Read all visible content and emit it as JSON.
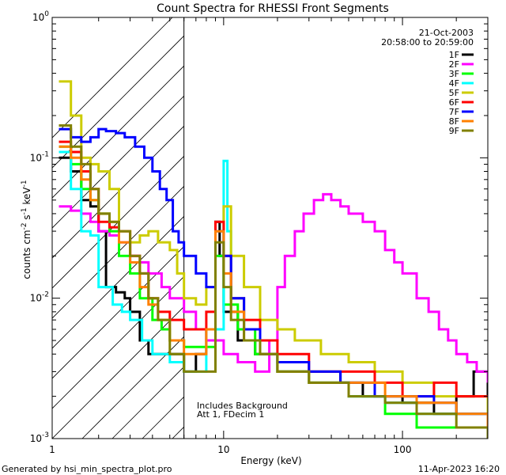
{
  "chart_data": {
    "type": "line",
    "title": "Count Spectra for RHESSI Front Segments",
    "xlabel": "Energy (keV)",
    "ylabel": "counts cm^-2 s^-1 keV^-1",
    "ylabel_parts": {
      "base": "counts cm",
      "exp1": "-2",
      "mid1": " s",
      "exp2": "-1",
      "mid2": " keV",
      "exp3": "-1"
    },
    "x_scale": "log",
    "y_scale": "log",
    "xlim": [
      1.1,
      300
    ],
    "ylim": [
      0.001,
      1
    ],
    "x_ticks": [
      {
        "value": 1,
        "label": "1"
      },
      {
        "value": 10,
        "label": "10"
      },
      {
        "value": 100,
        "label": "100"
      }
    ],
    "y_ticks": [
      {
        "value": 0.001,
        "base": "10",
        "exp": "-3"
      },
      {
        "value": 0.01,
        "base": "10",
        "exp": "-2"
      },
      {
        "value": 0.1,
        "base": "10",
        "exp": "-1"
      },
      {
        "value": 1,
        "base": "10",
        "exp": "0"
      }
    ],
    "hatched_region": [
      1.1,
      6
    ],
    "date": "21-Oct-2003",
    "time_range": "20:58:00 to 20:59:00",
    "annotation": [
      "Includes Background",
      "Att 1, FDecim 1"
    ],
    "legend_position": "top-right",
    "series": [
      {
        "name": "1F",
        "color": "#000000",
        "points": [
          [
            1.2,
            0.1
          ],
          [
            1.4,
            0.08
          ],
          [
            1.6,
            0.05
          ],
          [
            1.8,
            0.045
          ],
          [
            2.0,
            0.03
          ],
          [
            2.2,
            0.012
          ],
          [
            2.5,
            0.011
          ],
          [
            2.8,
            0.01
          ],
          [
            3.0,
            0.008
          ],
          [
            3.4,
            0.005
          ],
          [
            3.8,
            0.004
          ],
          [
            4.3,
            0.004
          ],
          [
            5,
            0.004
          ],
          [
            6,
            0.003
          ],
          [
            7,
            0.004
          ],
          [
            8,
            0.006
          ],
          [
            9,
            0.035
          ],
          [
            9.5,
            0.02
          ],
          [
            10,
            0.008
          ],
          [
            12,
            0.005
          ],
          [
            15,
            0.004
          ],
          [
            20,
            0.003
          ],
          [
            30,
            0.003
          ],
          [
            45,
            0.0025
          ],
          [
            60,
            0.002
          ],
          [
            80,
            0.002
          ],
          [
            100,
            0.0018
          ],
          [
            150,
            0.0015
          ],
          [
            200,
            0.002
          ],
          [
            250,
            0.003
          ],
          [
            300,
            0.002
          ]
        ]
      },
      {
        "name": "2F",
        "color": "#ff00ff",
        "points": [
          [
            1.2,
            0.045
          ],
          [
            1.4,
            0.042
          ],
          [
            1.6,
            0.04
          ],
          [
            1.8,
            0.035
          ],
          [
            2.0,
            0.03
          ],
          [
            2.3,
            0.028
          ],
          [
            2.6,
            0.025
          ],
          [
            3.0,
            0.02
          ],
          [
            3.4,
            0.018
          ],
          [
            3.8,
            0.015
          ],
          [
            4.5,
            0.012
          ],
          [
            5,
            0.01
          ],
          [
            6,
            0.008
          ],
          [
            7,
            0.006
          ],
          [
            8,
            0.005
          ],
          [
            10,
            0.004
          ],
          [
            12,
            0.0035
          ],
          [
            15,
            0.003
          ],
          [
            18,
            0.005
          ],
          [
            20,
            0.012
          ],
          [
            22,
            0.02
          ],
          [
            25,
            0.03
          ],
          [
            28,
            0.04
          ],
          [
            32,
            0.05
          ],
          [
            36,
            0.055
          ],
          [
            40,
            0.05
          ],
          [
            45,
            0.045
          ],
          [
            50,
            0.04
          ],
          [
            60,
            0.035
          ],
          [
            70,
            0.03
          ],
          [
            80,
            0.022
          ],
          [
            90,
            0.018
          ],
          [
            100,
            0.015
          ],
          [
            120,
            0.01
          ],
          [
            140,
            0.008
          ],
          [
            160,
            0.006
          ],
          [
            180,
            0.005
          ],
          [
            200,
            0.004
          ],
          [
            230,
            0.0035
          ],
          [
            260,
            0.003
          ],
          [
            300,
            0.0025
          ]
        ]
      },
      {
        "name": "3F",
        "color": "#00ff00",
        "points": [
          [
            1.2,
            0.12
          ],
          [
            1.4,
            0.09
          ],
          [
            1.6,
            0.06
          ],
          [
            1.8,
            0.05
          ],
          [
            2.0,
            0.04
          ],
          [
            2.3,
            0.03
          ],
          [
            2.6,
            0.02
          ],
          [
            3.0,
            0.015
          ],
          [
            3.4,
            0.01
          ],
          [
            4.0,
            0.007
          ],
          [
            4.5,
            0.006
          ],
          [
            5,
            0.005
          ],
          [
            6,
            0.0045
          ],
          [
            8,
            0.0045
          ],
          [
            9,
            0.02
          ],
          [
            10,
            0.009
          ],
          [
            12,
            0.006
          ],
          [
            15,
            0.004
          ],
          [
            20,
            0.003
          ],
          [
            30,
            0.0025
          ],
          [
            50,
            0.002
          ],
          [
            80,
            0.0015
          ],
          [
            120,
            0.0012
          ],
          [
            200,
            0.0012
          ],
          [
            300,
            0.001
          ]
        ]
      },
      {
        "name": "4F",
        "color": "#00ffff",
        "points": [
          [
            1.2,
            0.11
          ],
          [
            1.4,
            0.06
          ],
          [
            1.6,
            0.03
          ],
          [
            1.8,
            0.028
          ],
          [
            2.0,
            0.012
          ],
          [
            2.4,
            0.009
          ],
          [
            2.7,
            0.008
          ],
          [
            3.0,
            0.007
          ],
          [
            3.5,
            0.005
          ],
          [
            4.0,
            0.004
          ],
          [
            5,
            0.0035
          ],
          [
            6,
            0.003
          ],
          [
            8,
            0.006
          ],
          [
            10,
            0.095
          ],
          [
            10.5,
            0.03
          ],
          [
            11,
            0.01
          ],
          [
            13,
            0.006
          ],
          [
            16,
            0.004
          ],
          [
            20,
            0.003
          ],
          [
            30,
            0.0025
          ],
          [
            50,
            0.002
          ],
          [
            80,
            0.0018
          ],
          [
            120,
            0.0015
          ],
          [
            200,
            0.0015
          ],
          [
            300,
            0.0012
          ]
        ]
      },
      {
        "name": "5F",
        "color": "#cccc00",
        "points": [
          [
            1.2,
            0.35
          ],
          [
            1.4,
            0.2
          ],
          [
            1.6,
            0.1
          ],
          [
            1.8,
            0.09
          ],
          [
            2.0,
            0.08
          ],
          [
            2.3,
            0.06
          ],
          [
            2.6,
            0.03
          ],
          [
            3.0,
            0.025
          ],
          [
            3.4,
            0.028
          ],
          [
            3.8,
            0.03
          ],
          [
            4.3,
            0.025
          ],
          [
            5,
            0.022
          ],
          [
            5.5,
            0.015
          ],
          [
            6,
            0.01
          ],
          [
            7,
            0.009
          ],
          [
            8,
            0.012
          ],
          [
            9,
            0.03
          ],
          [
            10,
            0.045
          ],
          [
            11,
            0.02
          ],
          [
            13,
            0.012
          ],
          [
            16,
            0.007
          ],
          [
            20,
            0.006
          ],
          [
            25,
            0.005
          ],
          [
            35,
            0.004
          ],
          [
            50,
            0.0035
          ],
          [
            70,
            0.003
          ],
          [
            100,
            0.0025
          ],
          [
            150,
            0.002
          ],
          [
            200,
            0.002
          ],
          [
            300,
            0.0015
          ]
        ]
      },
      {
        "name": "6F",
        "color": "#ff0000",
        "points": [
          [
            1.2,
            0.13
          ],
          [
            1.4,
            0.11
          ],
          [
            1.6,
            0.08
          ],
          [
            1.8,
            0.06
          ],
          [
            2.0,
            0.035
          ],
          [
            2.3,
            0.032
          ],
          [
            2.6,
            0.03
          ],
          [
            3.0,
            0.02
          ],
          [
            3.4,
            0.015
          ],
          [
            3.8,
            0.01
          ],
          [
            4.3,
            0.008
          ],
          [
            5,
            0.007
          ],
          [
            6,
            0.006
          ],
          [
            8,
            0.008
          ],
          [
            9,
            0.035
          ],
          [
            10,
            0.02
          ],
          [
            11,
            0.01
          ],
          [
            13,
            0.007
          ],
          [
            16,
            0.005
          ],
          [
            20,
            0.004
          ],
          [
            30,
            0.003
          ],
          [
            45,
            0.003
          ],
          [
            70,
            0.0025
          ],
          [
            100,
            0.002
          ],
          [
            150,
            0.0025
          ],
          [
            200,
            0.002
          ],
          [
            300,
            0.002
          ]
        ]
      },
      {
        "name": "7F",
        "color": "#0000ff",
        "points": [
          [
            1.2,
            0.16
          ],
          [
            1.4,
            0.14
          ],
          [
            1.6,
            0.13
          ],
          [
            1.8,
            0.14
          ],
          [
            2.0,
            0.16
          ],
          [
            2.2,
            0.155
          ],
          [
            2.5,
            0.15
          ],
          [
            2.8,
            0.14
          ],
          [
            3.2,
            0.12
          ],
          [
            3.6,
            0.1
          ],
          [
            4.0,
            0.08
          ],
          [
            4.4,
            0.06
          ],
          [
            4.8,
            0.05
          ],
          [
            5.2,
            0.03
          ],
          [
            5.6,
            0.025
          ],
          [
            6,
            0.02
          ],
          [
            7,
            0.015
          ],
          [
            8,
            0.012
          ],
          [
            9,
            0.03
          ],
          [
            10,
            0.02
          ],
          [
            11,
            0.01
          ],
          [
            13,
            0.006
          ],
          [
            16,
            0.004
          ],
          [
            20,
            0.0035
          ],
          [
            30,
            0.003
          ],
          [
            45,
            0.0025
          ],
          [
            70,
            0.002
          ],
          [
            100,
            0.002
          ],
          [
            150,
            0.0018
          ],
          [
            200,
            0.0015
          ],
          [
            300,
            0.0015
          ]
        ]
      },
      {
        "name": "8F",
        "color": "#ff8000",
        "points": [
          [
            1.2,
            0.12
          ],
          [
            1.4,
            0.1
          ],
          [
            1.6,
            0.07
          ],
          [
            1.8,
            0.05
          ],
          [
            2.0,
            0.04
          ],
          [
            2.3,
            0.035
          ],
          [
            2.6,
            0.025
          ],
          [
            3.0,
            0.018
          ],
          [
            3.4,
            0.012
          ],
          [
            3.8,
            0.009
          ],
          [
            4.3,
            0.007
          ],
          [
            5,
            0.005
          ],
          [
            6,
            0.004
          ],
          [
            8,
            0.006
          ],
          [
            9,
            0.03
          ],
          [
            10,
            0.015
          ],
          [
            11,
            0.008
          ],
          [
            13,
            0.005
          ],
          [
            16,
            0.004
          ],
          [
            20,
            0.003
          ],
          [
            30,
            0.0025
          ],
          [
            50,
            0.0025
          ],
          [
            80,
            0.002
          ],
          [
            120,
            0.0018
          ],
          [
            200,
            0.0015
          ],
          [
            300,
            0.0012
          ]
        ]
      },
      {
        "name": "9F",
        "color": "#808000",
        "points": [
          [
            1.2,
            0.17
          ],
          [
            1.4,
            0.12
          ],
          [
            1.6,
            0.09
          ],
          [
            1.8,
            0.06
          ],
          [
            2.0,
            0.04
          ],
          [
            2.3,
            0.035
          ],
          [
            2.6,
            0.03
          ],
          [
            3.0,
            0.02
          ],
          [
            3.4,
            0.015
          ],
          [
            3.8,
            0.01
          ],
          [
            4.3,
            0.007
          ],
          [
            5,
            0.004
          ],
          [
            6,
            0.003
          ],
          [
            8,
            0.003
          ],
          [
            9,
            0.025
          ],
          [
            10,
            0.012
          ],
          [
            11,
            0.007
          ],
          [
            13,
            0.005
          ],
          [
            16,
            0.004
          ],
          [
            20,
            0.003
          ],
          [
            30,
            0.0025
          ],
          [
            50,
            0.002
          ],
          [
            80,
            0.0018
          ],
          [
            120,
            0.0015
          ],
          [
            200,
            0.0012
          ],
          [
            300,
            0.001
          ]
        ]
      }
    ]
  },
  "footer": {
    "left": "Generated by hsi_min_spectra_plot.pro",
    "right": "11-Apr-2023 16:20"
  }
}
